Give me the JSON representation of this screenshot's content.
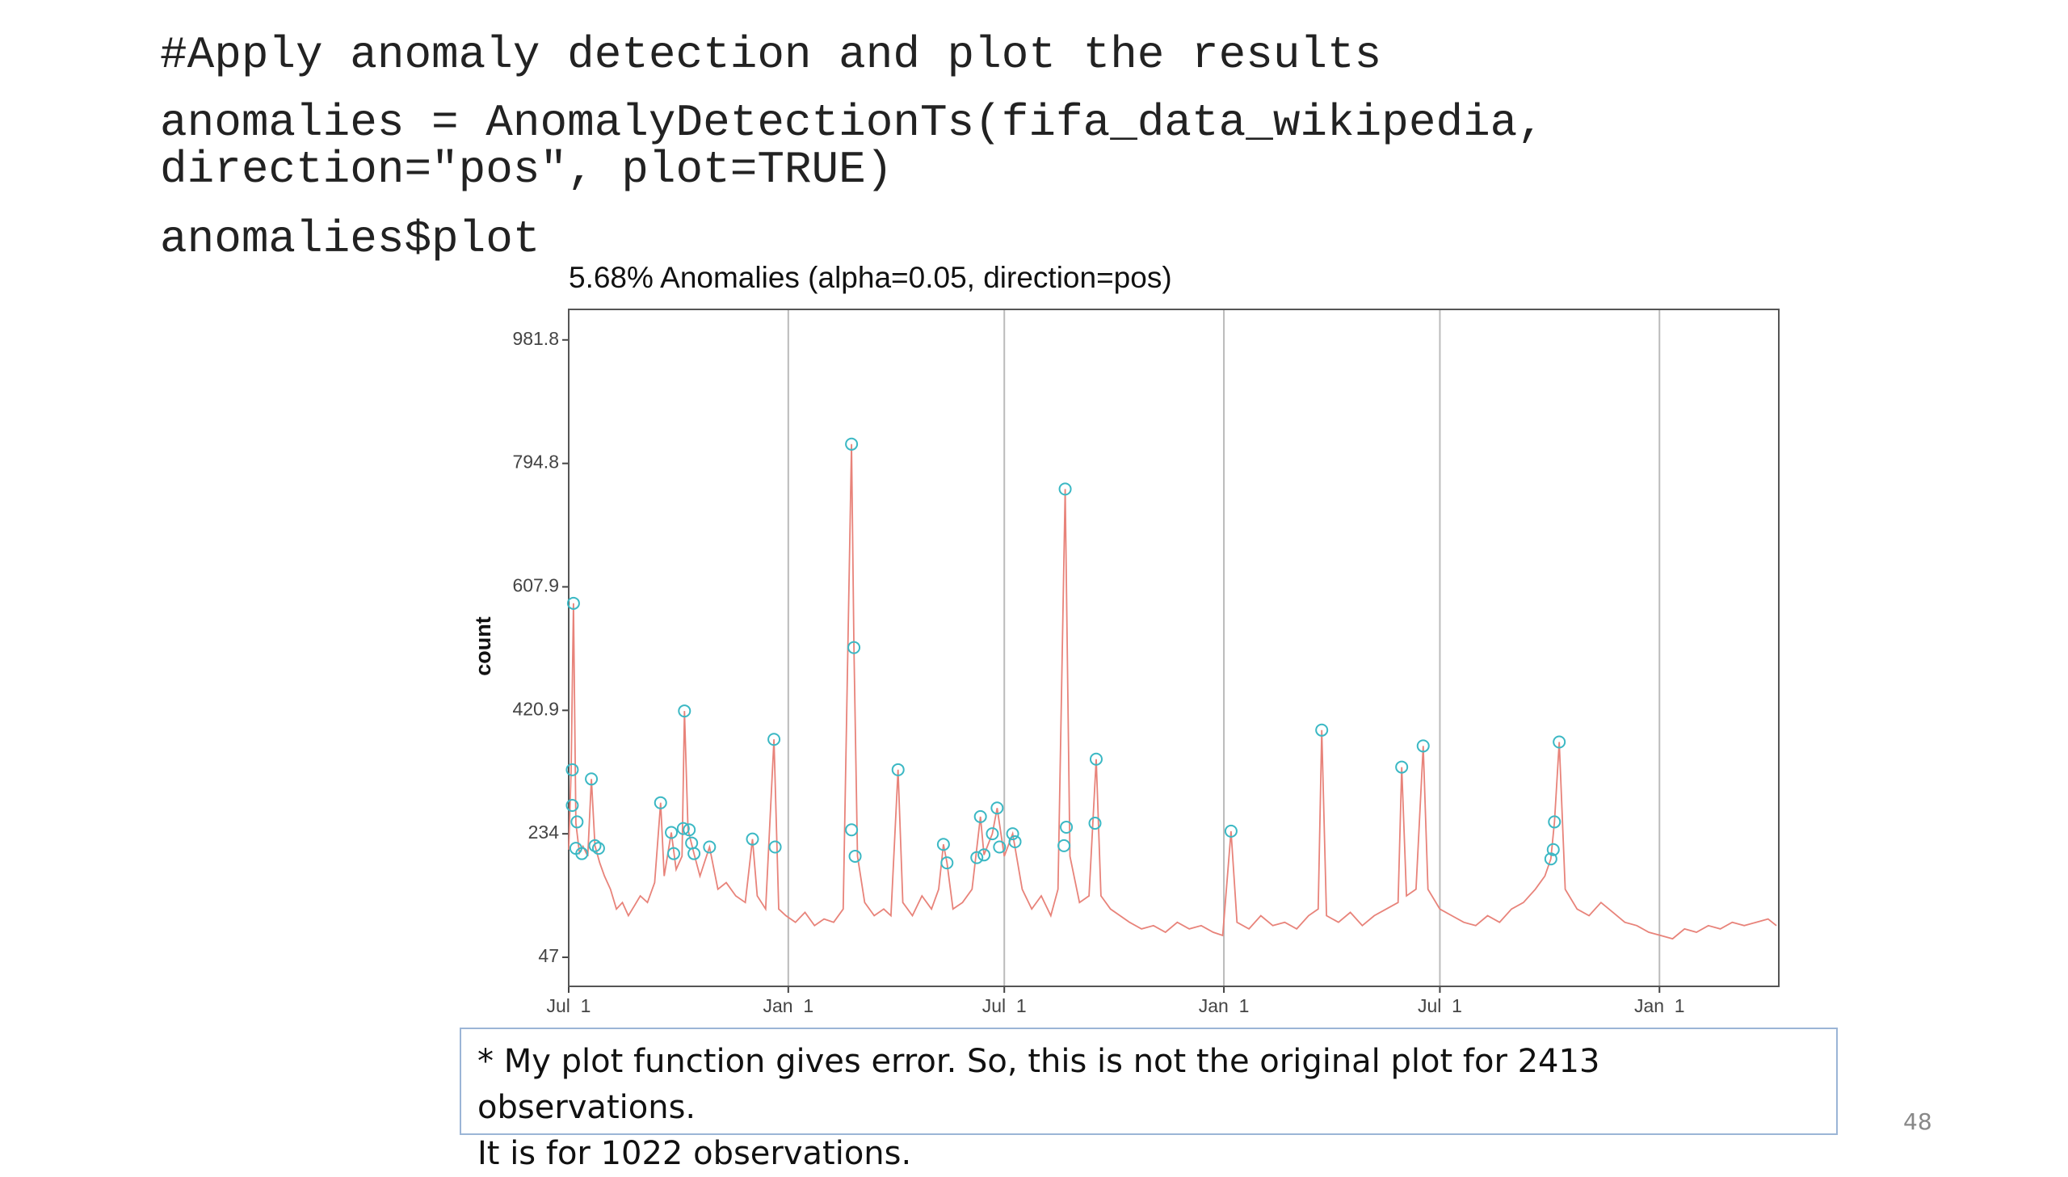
{
  "code": [
    "#Apply anomaly detection and plot the results",
    "anomalies = AnomalyDetectionTs(fifa_data_wikipedia,",
    "direction=\"pos\", plot=TRUE)",
    "anomalies$plot"
  ],
  "chart_data": {
    "type": "line",
    "title": "5.68% Anomalies (alpha=0.05, direction=pos)",
    "y_label": "count",
    "xlim": [
      0,
      1014
    ],
    "xticks": [
      {
        "value": 0,
        "label": "Jul  1"
      },
      {
        "value": 184,
        "label": "Jan  1"
      },
      {
        "value": 365,
        "label": "Jul  1"
      },
      {
        "value": 549,
        "label": "Jan  1"
      },
      {
        "value": 730,
        "label": "Jul  1"
      },
      {
        "value": 914,
        "label": "Jan  1"
      }
    ],
    "ylim": [
      3,
      1028
    ],
    "yticks": [
      47,
      234,
      420.9,
      607.9,
      794.8,
      981.8
    ],
    "grid": "x",
    "line": {
      "color": "#e8837a",
      "x": [
        0,
        2,
        4,
        6,
        9,
        12,
        16,
        19,
        22,
        26,
        30,
        35,
        40,
        45,
        50,
        55,
        60,
        66,
        72,
        77,
        80,
        86,
        90,
        95,
        97,
        100,
        105,
        110,
        118,
        125,
        132,
        140,
        148,
        154,
        158,
        165,
        172,
        176,
        182,
        190,
        198,
        206,
        214,
        222,
        230,
        237,
        239,
        242,
        248,
        256,
        264,
        270,
        276,
        280,
        288,
        296,
        304,
        310,
        314,
        317,
        322,
        330,
        338,
        345,
        348,
        355,
        359,
        365,
        372,
        380,
        388,
        396,
        404,
        410,
        416,
        420,
        428,
        436,
        442,
        446,
        454,
        462,
        470,
        480,
        490,
        500,
        510,
        520,
        530,
        540,
        548,
        555,
        560,
        570,
        580,
        590,
        600,
        610,
        620,
        628,
        631,
        635,
        645,
        655,
        665,
        675,
        685,
        695,
        698,
        702,
        710,
        716,
        720,
        730,
        740,
        750,
        760,
        770,
        780,
        790,
        800,
        810,
        818,
        823,
        826,
        830,
        835,
        845,
        855,
        865,
        875,
        885,
        895,
        905,
        915,
        925,
        935,
        945,
        955,
        965,
        975,
        985,
        995,
        1005,
        1012
      ],
      "values": [
        210,
        330,
        583,
        250,
        205,
        215,
        200,
        317,
        216,
        190,
        170,
        150,
        120,
        130,
        110,
        125,
        140,
        130,
        160,
        281,
        170,
        236,
        180,
        200,
        420,
        240,
        204,
        170,
        214,
        150,
        160,
        140,
        130,
        226,
        140,
        120,
        377,
        120,
        110,
        100,
        115,
        95,
        105,
        100,
        120,
        824,
        516,
        200,
        130,
        110,
        120,
        110,
        331,
        130,
        110,
        140,
        120,
        150,
        218,
        190,
        120,
        130,
        150,
        260,
        202,
        234,
        273,
        200,
        234,
        150,
        120,
        140,
        110,
        150,
        756,
        200,
        130,
        140,
        347,
        140,
        120,
        110,
        100,
        90,
        95,
        85,
        100,
        90,
        95,
        85,
        80,
        238,
        100,
        90,
        110,
        95,
        100,
        90,
        110,
        120,
        391,
        110,
        100,
        115,
        95,
        110,
        120,
        130,
        335,
        140,
        150,
        367,
        150,
        120,
        110,
        100,
        95,
        110,
        100,
        120,
        130,
        150,
        170,
        196,
        252,
        373,
        150,
        120,
        110,
        130,
        115,
        100,
        95,
        85,
        80,
        75,
        90,
        85,
        95,
        90,
        100,
        95,
        100,
        105,
        95
      ]
    },
    "anomalies": {
      "color": "#3bb8c4",
      "x": [
        4,
        3,
        3,
        7,
        6,
        11,
        19,
        22,
        25,
        77,
        86,
        88,
        97,
        96,
        101,
        103,
        105,
        118,
        154,
        172,
        173,
        237,
        239,
        237,
        240,
        276,
        314,
        317,
        342,
        345,
        348,
        355,
        359,
        361,
        372,
        374,
        416,
        417,
        415,
        441,
        442,
        555,
        631,
        698,
        716,
        826,
        825,
        823,
        830
      ],
      "values": [
        583,
        331,
        277,
        252,
        212,
        204,
        317,
        216,
        212,
        281,
        236,
        204,
        420,
        242,
        240,
        220,
        204,
        214,
        226,
        377,
        214,
        824,
        516,
        240,
        200,
        331,
        218,
        190,
        198,
        260,
        202,
        234,
        273,
        214,
        234,
        222,
        756,
        244,
        216,
        250,
        347,
        238,
        391,
        335,
        367,
        252,
        210,
        196,
        373
      ]
    }
  },
  "note": [
    "* My plot function gives error. So, this is not the original plot for 2413 observations.",
    "It is for 1022 observations."
  ],
  "page_number": "48"
}
